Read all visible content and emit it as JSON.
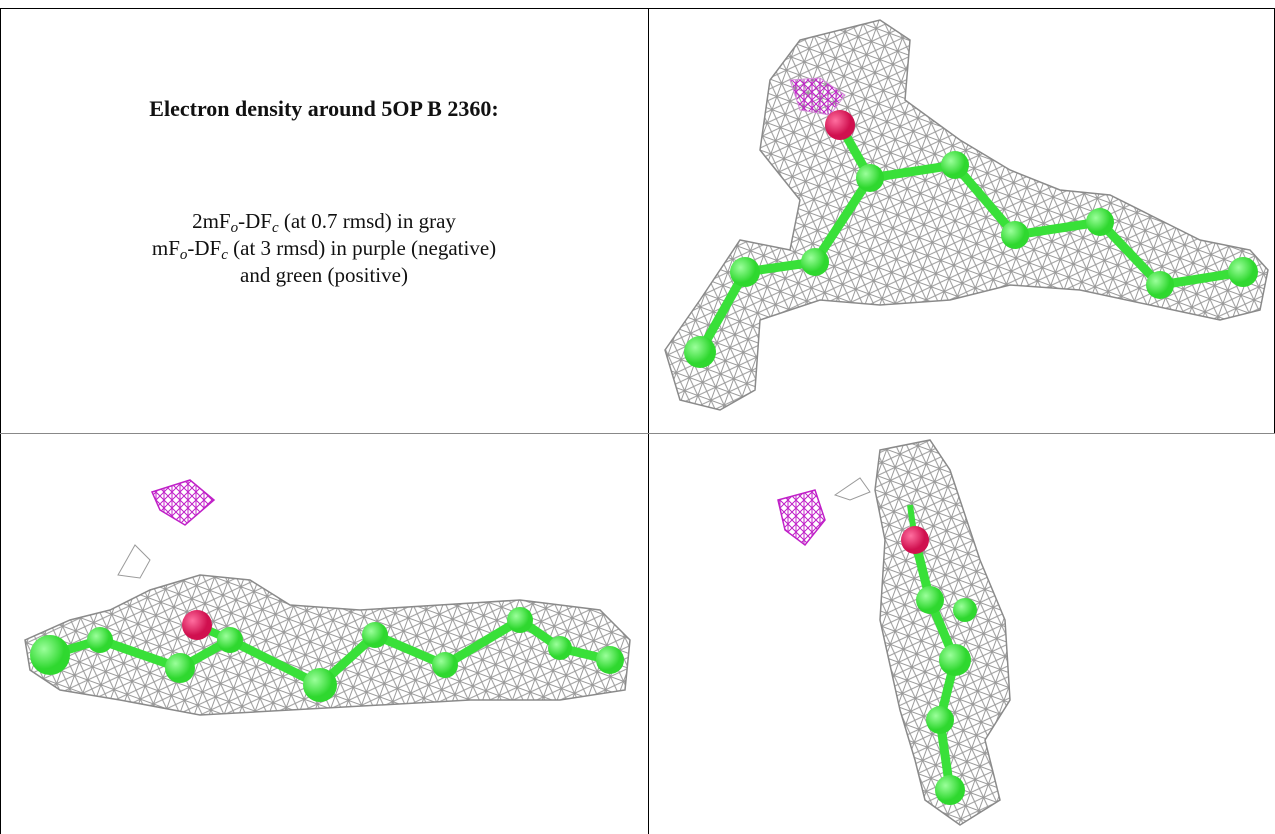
{
  "caption": {
    "title": "Electron density around 5OP B 2360:",
    "lines": [
      {
        "parts": [
          "2mF",
          "o",
          "-DF",
          "c",
          " (at 0.7 rmsd) in gray"
        ]
      },
      {
        "parts": [
          "mF",
          "o",
          "-DF",
          "c",
          " (at 3 rmsd) in purple (negative)"
        ]
      },
      {
        "parts": [
          "and green (positive)"
        ]
      }
    ]
  }
}
